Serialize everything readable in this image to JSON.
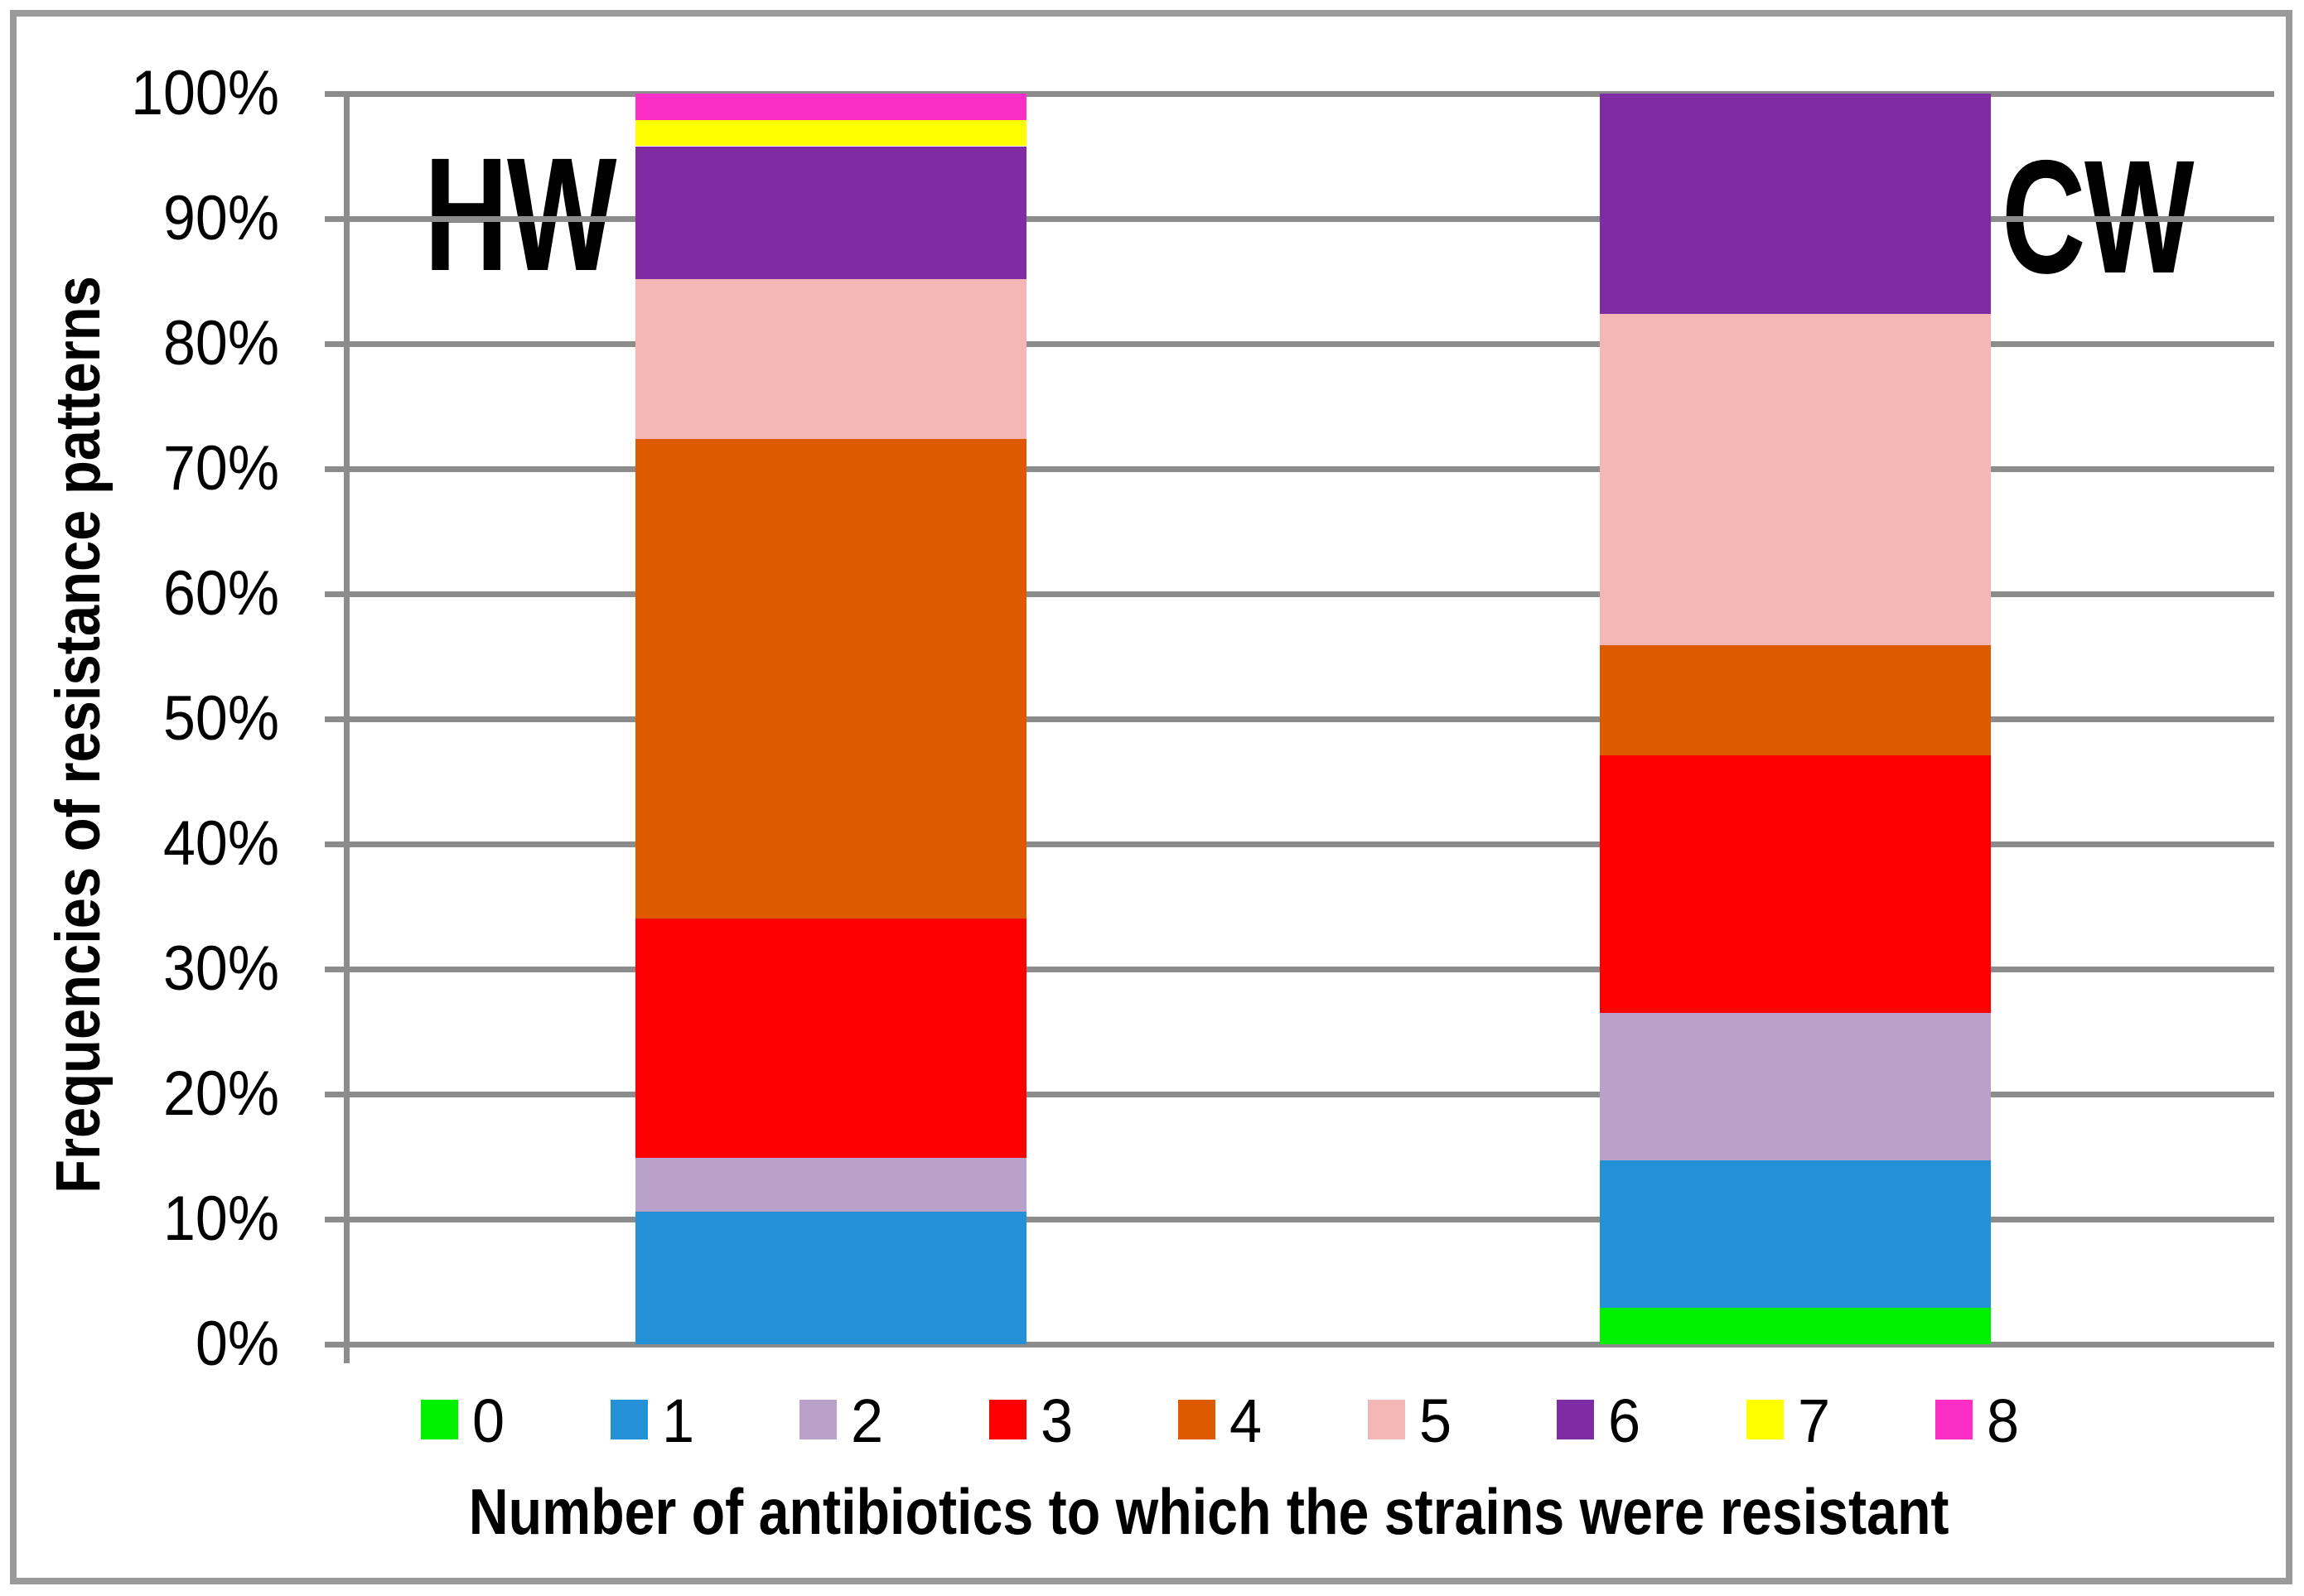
{
  "chart_data": {
    "type": "bar",
    "subtype": "stacked-100-percent",
    "title": "",
    "xlabel": "Number of antibiotics to which the strains were resistant",
    "ylabel": "Frequencies of resistance patterns",
    "categories": [
      "HW",
      "CW"
    ],
    "ylim": [
      0,
      100
    ],
    "ytick_labels": [
      "0%",
      "10%",
      "20%",
      "30%",
      "40%",
      "50%",
      "60%",
      "70%",
      "80%",
      "90%",
      "100%"
    ],
    "grid": true,
    "legend_position": "bottom",
    "series": [
      {
        "name": "0",
        "color": "#00F000",
        "values_pct": [
          0,
          2.9
        ]
      },
      {
        "name": "1",
        "color": "#2490D5",
        "values_pct": [
          10.6,
          11.8
        ]
      },
      {
        "name": "2",
        "color": "#B9A1C9",
        "values_pct": [
          4.3,
          11.8
        ]
      },
      {
        "name": "3",
        "color": "#FF0000",
        "values_pct": [
          19.1,
          20.6
        ]
      },
      {
        "name": "4",
        "color": "#DD5A00",
        "values_pct": [
          38.3,
          8.8
        ]
      },
      {
        "name": "5",
        "color": "#F4B7B5",
        "values_pct": [
          12.8,
          26.5
        ]
      },
      {
        "name": "6",
        "color": "#7F2CA4",
        "values_pct": [
          10.6,
          17.6
        ]
      },
      {
        "name": "7",
        "color": "#FFFF00",
        "values_pct": [
          2.1,
          0
        ]
      },
      {
        "name": "8",
        "color": "#FB2EC6",
        "values_pct": [
          2.1,
          0
        ]
      }
    ]
  },
  "colors": {
    "gridline": "#8C8C8C",
    "frame_border": "#9A9A9A",
    "text": "#000000",
    "background": "#FFFFFF"
  }
}
